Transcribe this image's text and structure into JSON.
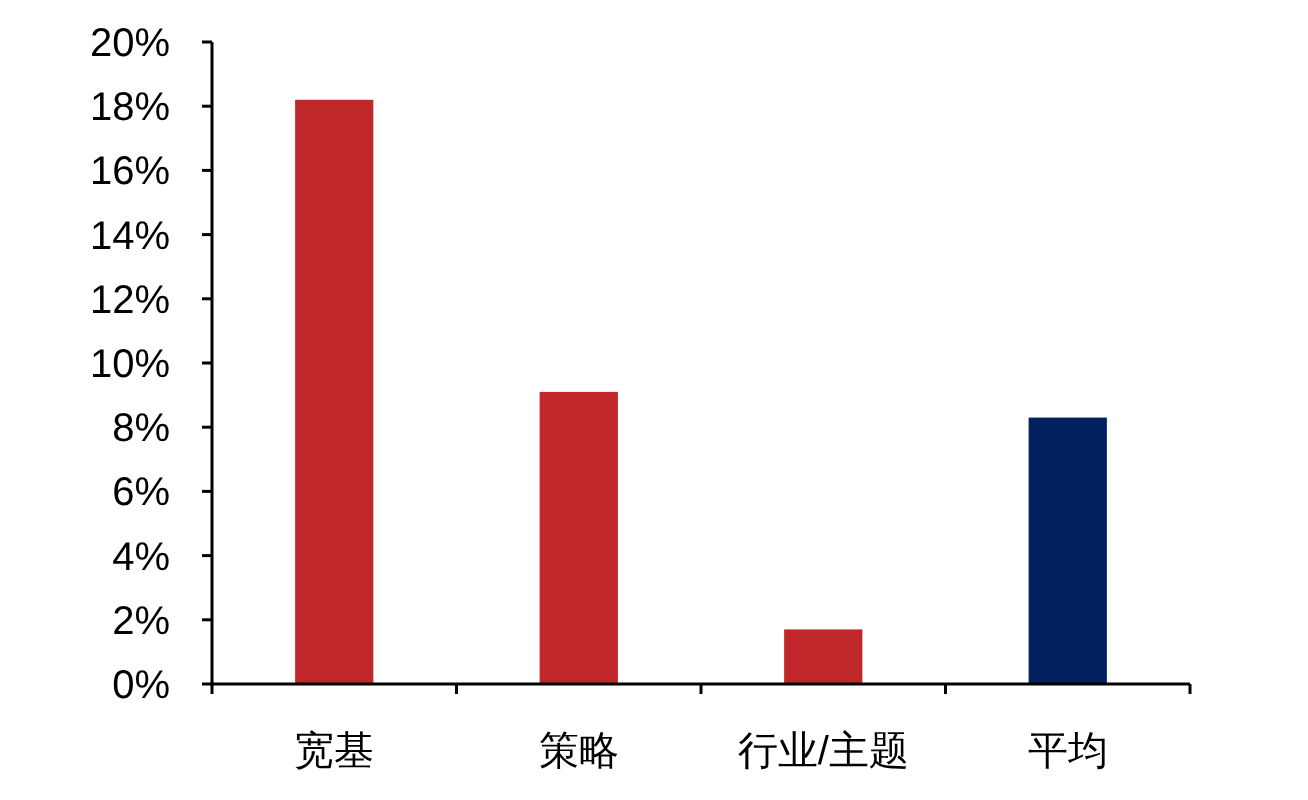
{
  "chart_data": {
    "type": "bar",
    "categories": [
      "宽基",
      "策略",
      "行业/主题",
      "平均"
    ],
    "values": [
      18.2,
      9.1,
      1.7,
      8.3
    ],
    "colors": [
      "#c0272b",
      "#c0272b",
      "#c0272b",
      "#03215f"
    ],
    "ylim": [
      0,
      20
    ],
    "yticks": [
      {
        "value": 0,
        "label": "0%"
      },
      {
        "value": 2,
        "label": "2%"
      },
      {
        "value": 4,
        "label": "4%"
      },
      {
        "value": 6,
        "label": "6%"
      },
      {
        "value": 8,
        "label": "8%"
      },
      {
        "value": 10,
        "label": "10%"
      },
      {
        "value": 12,
        "label": "12%"
      },
      {
        "value": 14,
        "label": "14%"
      },
      {
        "value": 16,
        "label": "16%"
      },
      {
        "value": 18,
        "label": "18%"
      },
      {
        "value": 20,
        "label": "20%"
      }
    ]
  }
}
